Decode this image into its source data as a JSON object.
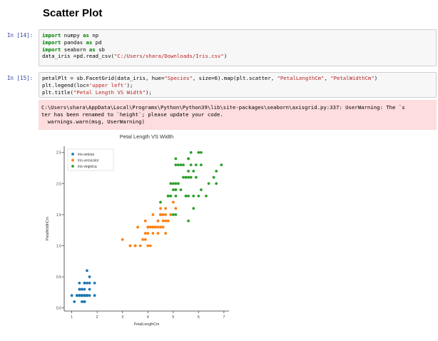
{
  "heading": "Scatter Plot",
  "cell14": {
    "prompt": "In [14]:",
    "lines": [
      [
        {
          "t": "import",
          "c": "kw"
        },
        {
          "t": " numpy "
        },
        {
          "t": "as",
          "c": "kw"
        },
        {
          "t": " np"
        }
      ],
      [
        {
          "t": "import",
          "c": "kw"
        },
        {
          "t": " pandas "
        },
        {
          "t": "as",
          "c": "kw"
        },
        {
          "t": " pd"
        }
      ],
      [
        {
          "t": "import",
          "c": "kw"
        },
        {
          "t": " seaborn "
        },
        {
          "t": "as",
          "c": "kw"
        },
        {
          "t": " sb"
        }
      ],
      [
        {
          "t": "data_iris =pd.read_csv("
        },
        {
          "t": "\"C:/Users/shara/Downloads/Iris.csv\"",
          "c": "str"
        },
        {
          "t": ")"
        }
      ]
    ]
  },
  "cell15": {
    "prompt": "In [15]:",
    "lines": [
      [
        {
          "t": "petalPlt = sb.FacetGrid(data_iris, hue="
        },
        {
          "t": "\"Species\"",
          "c": "str"
        },
        {
          "t": ", size=6).map(plt.scatter, "
        },
        {
          "t": "\"PetalLengthCm\"",
          "c": "str"
        },
        {
          "t": ", "
        },
        {
          "t": "\"PetalWidthCm\"",
          "c": "str"
        },
        {
          "t": ")"
        }
      ],
      [
        {
          "t": "plt.legend(loc="
        },
        {
          "t": "'upper left'",
          "c": "str"
        },
        {
          "t": ");"
        }
      ],
      [
        {
          "t": "plt.title("
        },
        {
          "t": "\"Petal Length VS Width\"",
          "c": "str"
        },
        {
          "t": ");"
        }
      ]
    ],
    "stderr": [
      "C:\\Users\\shara\\AppData\\Local\\Programs\\Python\\Python39\\lib\\site-packages\\seaborn\\axisgrid.py:337: UserWarning: The `s",
      "ter has been renamed to `height`; please update your code.",
      "  warnings.warn(msg, UserWarning)"
    ]
  },
  "chart_data": {
    "type": "scatter",
    "title": "Petal Length VS Width",
    "xlabel": "PetalLengthCm",
    "ylabel": "PetalWidthCm",
    "xlim": [
      0.7,
      7.2
    ],
    "ylim": [
      -0.05,
      2.6
    ],
    "xticks": [
      "1",
      "2",
      "3",
      "4",
      "5",
      "6",
      "7"
    ],
    "yticks": [
      "0.0",
      "0.5",
      "1.0",
      "1.5",
      "2.0",
      "2.5"
    ],
    "legend_position": "upper left",
    "series": [
      {
        "name": "Iris-setosa",
        "color": "#1f77b4",
        "points": [
          [
            1.4,
            0.2
          ],
          [
            1.4,
            0.2
          ],
          [
            1.3,
            0.2
          ],
          [
            1.5,
            0.2
          ],
          [
            1.4,
            0.2
          ],
          [
            1.7,
            0.4
          ],
          [
            1.4,
            0.3
          ],
          [
            1.5,
            0.2
          ],
          [
            1.4,
            0.2
          ],
          [
            1.5,
            0.1
          ],
          [
            1.5,
            0.2
          ],
          [
            1.6,
            0.2
          ],
          [
            1.4,
            0.1
          ],
          [
            1.1,
            0.1
          ],
          [
            1.2,
            0.2
          ],
          [
            1.5,
            0.4
          ],
          [
            1.3,
            0.4
          ],
          [
            1.4,
            0.3
          ],
          [
            1.7,
            0.3
          ],
          [
            1.5,
            0.3
          ],
          [
            1.7,
            0.2
          ],
          [
            1.5,
            0.4
          ],
          [
            1.0,
            0.2
          ],
          [
            1.7,
            0.5
          ],
          [
            1.9,
            0.2
          ],
          [
            1.6,
            0.2
          ],
          [
            1.6,
            0.4
          ],
          [
            1.5,
            0.2
          ],
          [
            1.4,
            0.2
          ],
          [
            1.6,
            0.2
          ],
          [
            1.6,
            0.2
          ],
          [
            1.5,
            0.4
          ],
          [
            1.5,
            0.1
          ],
          [
            1.4,
            0.2
          ],
          [
            1.5,
            0.1
          ],
          [
            1.2,
            0.2
          ],
          [
            1.3,
            0.2
          ],
          [
            1.5,
            0.1
          ],
          [
            1.3,
            0.2
          ],
          [
            1.5,
            0.2
          ],
          [
            1.3,
            0.3
          ],
          [
            1.3,
            0.3
          ],
          [
            1.3,
            0.2
          ],
          [
            1.6,
            0.6
          ],
          [
            1.9,
            0.4
          ],
          [
            1.4,
            0.3
          ],
          [
            1.6,
            0.2
          ],
          [
            1.4,
            0.2
          ],
          [
            1.5,
            0.2
          ],
          [
            1.4,
            0.2
          ]
        ]
      },
      {
        "name": "Iris-versicolor",
        "color": "#ff7f0e",
        "points": [
          [
            4.7,
            1.4
          ],
          [
            4.5,
            1.5
          ],
          [
            4.9,
            1.5
          ],
          [
            4.0,
            1.3
          ],
          [
            4.6,
            1.5
          ],
          [
            4.5,
            1.3
          ],
          [
            4.7,
            1.6
          ],
          [
            3.3,
            1.0
          ],
          [
            4.6,
            1.3
          ],
          [
            3.9,
            1.4
          ],
          [
            3.5,
            1.0
          ],
          [
            4.2,
            1.5
          ],
          [
            4.0,
            1.0
          ],
          [
            4.7,
            1.4
          ],
          [
            3.6,
            1.3
          ],
          [
            4.4,
            1.4
          ],
          [
            4.5,
            1.5
          ],
          [
            4.1,
            1.0
          ],
          [
            4.5,
            1.5
          ],
          [
            3.9,
            1.1
          ],
          [
            4.8,
            1.8
          ],
          [
            4.0,
            1.3
          ],
          [
            4.9,
            1.5
          ],
          [
            4.7,
            1.2
          ],
          [
            4.3,
            1.3
          ],
          [
            4.4,
            1.4
          ],
          [
            4.8,
            1.4
          ],
          [
            5.0,
            1.7
          ],
          [
            4.5,
            1.5
          ],
          [
            3.5,
            1.0
          ],
          [
            3.8,
            1.1
          ],
          [
            3.7,
            1.0
          ],
          [
            3.9,
            1.2
          ],
          [
            5.1,
            1.6
          ],
          [
            4.5,
            1.5
          ],
          [
            4.5,
            1.6
          ],
          [
            4.7,
            1.5
          ],
          [
            4.4,
            1.3
          ],
          [
            4.1,
            1.3
          ],
          [
            4.0,
            1.3
          ],
          [
            4.4,
            1.2
          ],
          [
            4.6,
            1.4
          ],
          [
            4.0,
            1.2
          ],
          [
            3.3,
            1.0
          ],
          [
            4.2,
            1.3
          ],
          [
            4.2,
            1.2
          ],
          [
            4.2,
            1.3
          ],
          [
            4.3,
            1.3
          ],
          [
            3.0,
            1.1
          ],
          [
            4.1,
            1.3
          ]
        ]
      },
      {
        "name": "Iris-virginica",
        "color": "#2ca02c",
        "points": [
          [
            6.0,
            2.5
          ],
          [
            5.1,
            1.9
          ],
          [
            5.9,
            2.1
          ],
          [
            5.6,
            1.8
          ],
          [
            5.8,
            2.2
          ],
          [
            6.6,
            2.1
          ],
          [
            4.5,
            1.7
          ],
          [
            6.3,
            1.8
          ],
          [
            5.8,
            1.8
          ],
          [
            6.1,
            2.5
          ],
          [
            5.1,
            2.0
          ],
          [
            5.3,
            1.9
          ],
          [
            5.5,
            2.1
          ],
          [
            5.0,
            2.0
          ],
          [
            5.1,
            2.4
          ],
          [
            5.3,
            2.3
          ],
          [
            5.5,
            1.8
          ],
          [
            6.7,
            2.2
          ],
          [
            6.9,
            2.3
          ],
          [
            5.0,
            1.5
          ],
          [
            5.7,
            2.3
          ],
          [
            4.9,
            2.0
          ],
          [
            6.7,
            2.0
          ],
          [
            4.9,
            1.8
          ],
          [
            5.7,
            2.1
          ],
          [
            6.0,
            1.8
          ],
          [
            4.8,
            1.8
          ],
          [
            4.9,
            1.8
          ],
          [
            5.6,
            2.1
          ],
          [
            5.8,
            1.6
          ],
          [
            6.1,
            1.9
          ],
          [
            6.4,
            2.0
          ],
          [
            5.6,
            2.2
          ],
          [
            5.1,
            1.5
          ],
          [
            5.6,
            1.4
          ],
          [
            6.1,
            2.3
          ],
          [
            5.6,
            2.4
          ],
          [
            5.5,
            1.8
          ],
          [
            4.8,
            1.8
          ],
          [
            5.4,
            2.1
          ],
          [
            5.6,
            2.4
          ],
          [
            5.1,
            2.3
          ],
          [
            5.1,
            1.9
          ],
          [
            5.9,
            2.3
          ],
          [
            5.7,
            2.5
          ],
          [
            5.2,
            2.3
          ],
          [
            5.0,
            1.9
          ],
          [
            5.2,
            2.0
          ],
          [
            5.4,
            2.3
          ],
          [
            5.1,
            1.8
          ]
        ]
      }
    ]
  }
}
